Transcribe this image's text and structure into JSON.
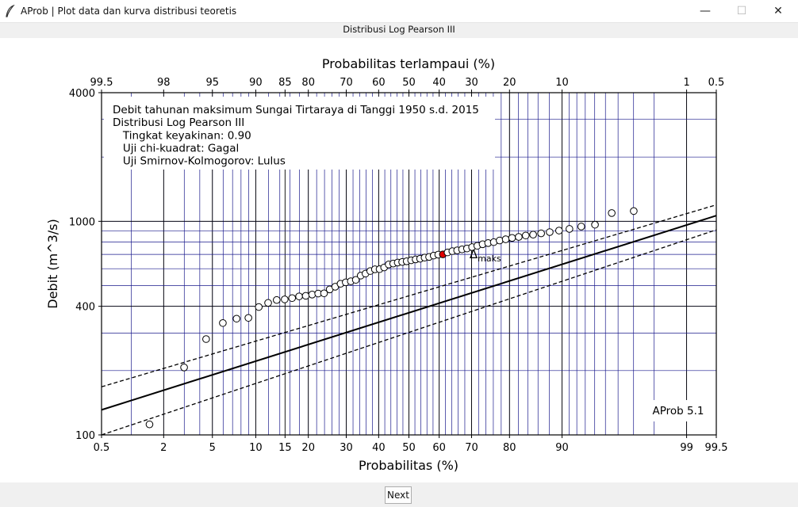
{
  "window": {
    "title": "AProb | Plot data dan kurva distribusi teoretis",
    "subtitle": "Distribusi Log Pearson III",
    "minimize_glyph": "—",
    "maximize_glyph": "☐",
    "close_glyph": "✕"
  },
  "footer": {
    "next_label": "Next"
  },
  "colors": {
    "grid": "#1a1a8c",
    "major_grid": "#000000",
    "curve": "#000000",
    "highlight_point": "#e00000"
  },
  "chart_data": {
    "type": "scatter",
    "xlabel": "Probabilitas (%)",
    "x2label": "Probabilitas terlampaui (%)",
    "ylabel": "Debit (m^3/s)",
    "xlim": [
      0.5,
      99.5
    ],
    "ylim": [
      100,
      4000
    ],
    "xscale": "probability",
    "yscale": "log",
    "grid": true,
    "x_ticks": [
      "0.5",
      "2",
      "5",
      "10",
      "15",
      "20",
      "30",
      "40",
      "50",
      "60",
      "70",
      "80",
      "90",
      "99",
      "99.5"
    ],
    "x_tick_values": [
      0.5,
      2,
      5,
      10,
      15,
      20,
      30,
      40,
      50,
      60,
      70,
      80,
      90,
      99,
      99.5
    ],
    "x2_ticks": [
      "99.5",
      "98",
      "95",
      "90",
      "85",
      "80",
      "70",
      "60",
      "50",
      "40",
      "30",
      "20",
      "10",
      "1",
      "0.5"
    ],
    "x2_tick_values": [
      99.5,
      98,
      95,
      90,
      85,
      80,
      70,
      60,
      50,
      40,
      30,
      20,
      10,
      1,
      0.5
    ],
    "y_ticks": [
      "100",
      "400",
      "1000",
      "4000"
    ],
    "y_tick_values": [
      100,
      400,
      1000,
      4000
    ],
    "info_box": [
      "Debit tahunan maksimum Sungai Tirtaraya di Tanggi 1950 s.d. 2015",
      "Distribusi Log Pearson III",
      "   Tingkat keyakinan: 0.90",
      "   Uji chi-kuadrat: Gagal",
      "   Uji Smirnov-Kolmogorov: Lulus"
    ],
    "watermark": "AProb 5.1",
    "annotation": {
      "text": "Δ",
      "subscript": "maks",
      "x": 64.6,
      "y": 700
    },
    "series": [
      {
        "kind": "observed",
        "x": [
          1.49,
          2.99,
          4.48,
          5.97,
          7.46,
          8.96,
          10.45,
          11.94,
          13.43,
          14.93,
          16.42,
          17.91,
          19.4,
          20.9,
          22.39,
          23.88,
          25.37,
          26.87,
          28.36,
          29.85,
          31.34,
          32.84,
          34.33,
          35.82,
          37.31,
          38.81,
          40.3,
          41.79,
          43.28,
          44.78,
          46.27,
          47.76,
          49.25,
          50.75,
          52.24,
          53.73,
          55.22,
          56.72,
          58.21,
          59.7,
          61.19,
          62.69,
          64.18,
          65.67,
          67.16,
          68.66,
          70.15,
          71.64,
          73.13,
          74.63,
          76.12,
          77.61,
          79.1,
          80.6,
          82.09,
          83.58,
          85.07,
          86.57,
          88.06,
          89.55,
          91.04,
          92.54,
          94.03,
          95.52,
          97.01
        ],
        "y": [
          112,
          207,
          281,
          334,
          350,
          353,
          397,
          415,
          428,
          431,
          437,
          445,
          448,
          454,
          459,
          460,
          480,
          494,
          510,
          518,
          524,
          532,
          557,
          569,
          585,
          596,
          597,
          608,
          628,
          634,
          641,
          645,
          650,
          657,
          663,
          668,
          676,
          681,
          691,
          698,
          700,
          715,
          725,
          731,
          739,
          746,
          757,
          768,
          781,
          791,
          799,
          813,
          824,
          836,
          845,
          858,
          866,
          878,
          890,
          905,
          921,
          945,
          964,
          1093,
          1117
        ],
        "highlight_index": 40
      },
      {
        "kind": "fitted",
        "x": [
          0.5,
          99.5
        ],
        "y": [
          131,
          1063
        ]
      },
      {
        "kind": "upper-bound",
        "x": [
          0.5,
          99.5
        ],
        "y": [
          168,
          1194
        ]
      },
      {
        "kind": "lower-bound",
        "x": [
          0.5,
          99.5
        ],
        "y": [
          100,
          912
        ]
      }
    ]
  }
}
